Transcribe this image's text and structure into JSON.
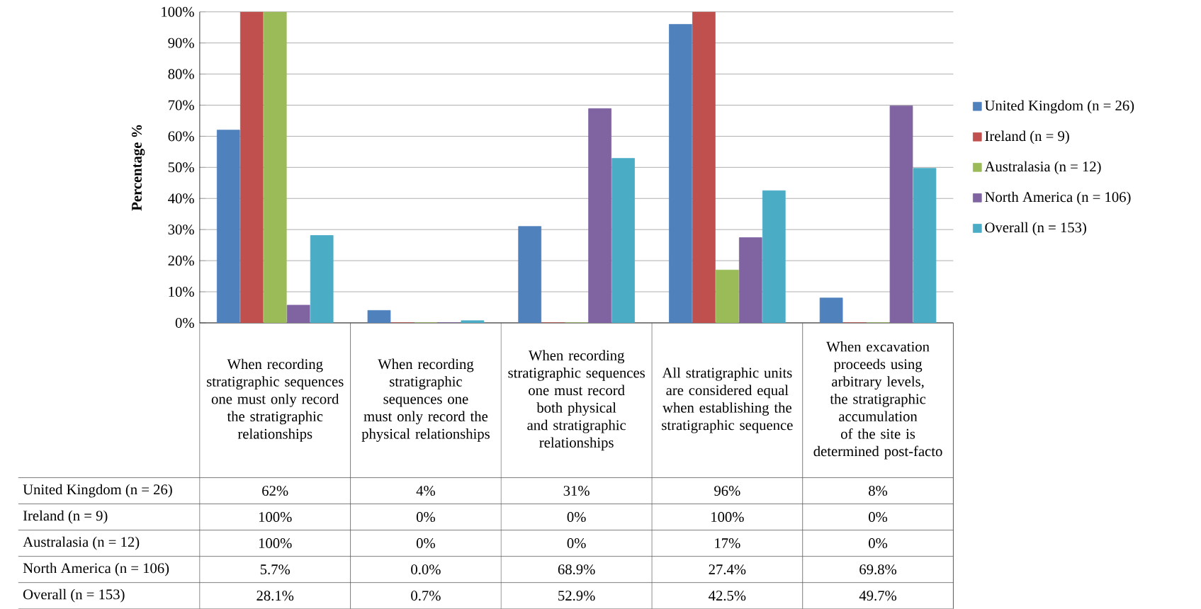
{
  "chart_data": {
    "type": "bar",
    "ylabel": "Percentage %",
    "categories": [
      "When recording stratigraphic sequences one must only record the stratigraphic relationships",
      "When recording stratigraphic sequences one must only record the physical relationships",
      "When recording stratigraphic sequences one must record both physical and stratigraphic relationships",
      "All stratigraphic units are considered equal when establishing the stratigraphic sequence",
      "When excavation proceeds using arbitrary levels, the stratigraphic accumulation of the site is determined post-facto"
    ],
    "series": [
      {
        "name": "United Kingdom (n = 26)",
        "color": "#4f81bd",
        "values": [
          62,
          4,
          31,
          96,
          8
        ],
        "value_labels": [
          "62%",
          "4%",
          "31%",
          "96%",
          "8%"
        ]
      },
      {
        "name": "Ireland (n = 9)",
        "color": "#c0504d",
        "values": [
          100,
          0,
          0,
          100,
          0
        ],
        "value_labels": [
          "100%",
          "0%",
          "0%",
          "100%",
          "0%"
        ]
      },
      {
        "name": "Australasia (n = 12)",
        "color": "#9bbb59",
        "values": [
          100,
          0,
          0,
          17,
          0
        ],
        "value_labels": [
          "100%",
          "0%",
          "0%",
          "17%",
          "0%"
        ]
      },
      {
        "name": "North America (n = 106)",
        "color": "#8064a2",
        "values": [
          5.7,
          0.0,
          68.9,
          27.4,
          69.8
        ],
        "value_labels": [
          "5.7%",
          "0.0%",
          "68.9%",
          "27.4%",
          "69.8%"
        ]
      },
      {
        "name": "Overall (n = 153)",
        "color": "#4bacc6",
        "values": [
          28.1,
          0.7,
          52.9,
          42.5,
          49.7
        ],
        "value_labels": [
          "28.1%",
          "0.7%",
          "52.9%",
          "42.5%",
          "49.7%"
        ]
      }
    ],
    "ylim": [
      0,
      100
    ],
    "yticks": [
      {
        "value": 0,
        "label": "0%"
      },
      {
        "value": 10,
        "label": "10%"
      },
      {
        "value": 20,
        "label": "20%"
      },
      {
        "value": 30,
        "label": "30%"
      },
      {
        "value": 40,
        "label": "40%"
      },
      {
        "value": 50,
        "label": "50%"
      },
      {
        "value": 60,
        "label": "60%"
      },
      {
        "value": 70,
        "label": "70%"
      },
      {
        "value": 80,
        "label": "80%"
      },
      {
        "value": 90,
        "label": "90%"
      },
      {
        "value": 100,
        "label": "100%"
      }
    ],
    "grid": "y",
    "legend": "right"
  }
}
